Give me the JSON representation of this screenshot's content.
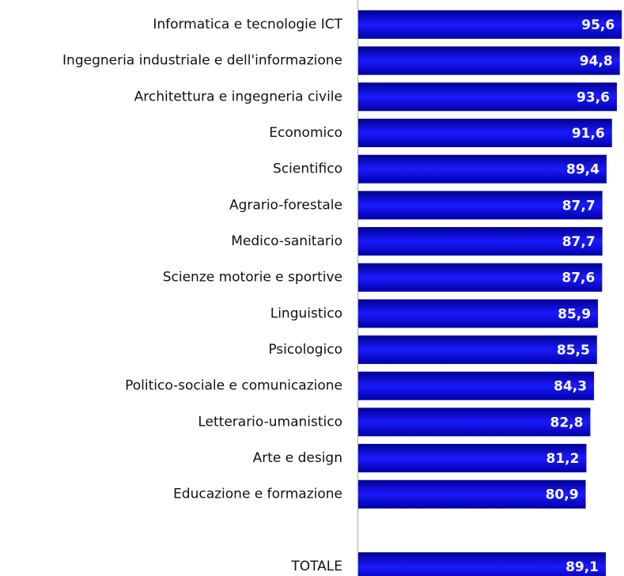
{
  "chart_data": {
    "type": "bar",
    "orientation": "horizontal",
    "categories": [
      "Informatica e tecnologie ICT",
      "Ingegneria industriale e dell'informazione",
      "Architettura e ingegneria civile",
      "Economico",
      "Scientifico",
      "Agrario-forestale",
      "Medico-sanitario",
      "Scienze motorie e sportive",
      "Linguistico",
      "Psicologico",
      "Politico-sociale e comunicazione",
      "Letterario-umanistico",
      "Arte e design",
      "Educazione e formazione",
      null,
      "TOTALE"
    ],
    "values": [
      95.6,
      94.8,
      93.6,
      91.6,
      89.4,
      87.7,
      87.7,
      87.6,
      85.9,
      85.5,
      84.3,
      82.8,
      81.2,
      80.9,
      null,
      89.1
    ],
    "value_labels": [
      "95,6",
      "94,8",
      "93,6",
      "91,6",
      "89,4",
      "87,7",
      "87,7",
      "87,6",
      "85,9",
      "85,5",
      "84,3",
      "82,8",
      "81,2",
      "80,9",
      null,
      "89,1"
    ],
    "color": "#1010e0",
    "xlim": [
      -12,
      96.5
    ]
  }
}
